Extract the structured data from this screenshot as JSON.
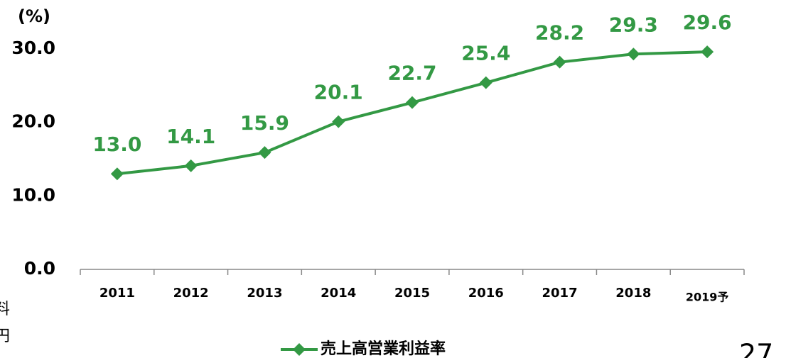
{
  "chart_data": {
    "type": "line",
    "y_unit": "(%)",
    "categories": [
      "2011",
      "2012",
      "2013",
      "2014",
      "2015",
      "2016",
      "2017",
      "2018",
      "2019予"
    ],
    "series": [
      {
        "name": "売上高営業利益率",
        "color": "#339944",
        "values": [
          13.0,
          14.1,
          15.9,
          20.1,
          22.7,
          25.4,
          28.2,
          29.3,
          29.6
        ],
        "value_labels": [
          "13.0",
          "14.1",
          "15.9",
          "20.1",
          "22.7",
          "25.4",
          "28.2",
          "29.3",
          "29.6"
        ]
      }
    ],
    "ylim": [
      0,
      30
    ],
    "yticks": [
      {
        "value": 0,
        "label": "0.0"
      },
      {
        "value": 10,
        "label": "10.0"
      },
      {
        "value": 20,
        "label": "20.0"
      },
      {
        "value": 30,
        "label": "30.0"
      }
    ],
    "grid": false,
    "legend": "bottom"
  },
  "page_fragments": [
    "料",
    "円",
    "27"
  ]
}
